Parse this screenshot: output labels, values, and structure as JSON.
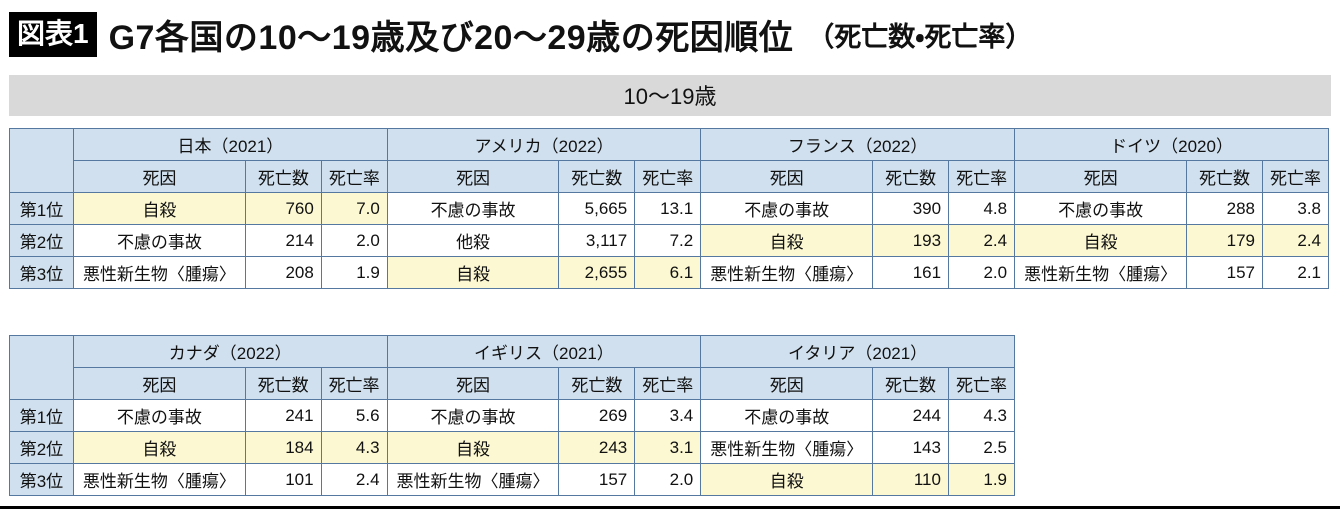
{
  "title": {
    "badge": "図表1",
    "main": "G7各国の10〜19歳及び20〜29歳の死因順位",
    "suffix": "（死亡数・死亡率）"
  },
  "colors": {
    "table_border": "#5578a0",
    "header_fill": "#d0e0ee",
    "highlight_fill": "#fcf8d2",
    "section_band_fill": "#d9d9d9",
    "badge_background": "#000000"
  },
  "chart_data": {
    "type": "table",
    "title": "G7各国の10〜19歳及び20〜29歳の死因順位（死亡数・死亡率）",
    "section": "10〜19歳",
    "columns": [
      "死因",
      "死亡数",
      "死亡率"
    ],
    "rank_labels": [
      "第1位",
      "第2位",
      "第3位"
    ],
    "groups": [
      [
        {
          "country": "日本（2021）",
          "rows": [
            {
              "cause": "自殺",
              "deaths": "760",
              "rate": "7.0",
              "highlight": true
            },
            {
              "cause": "不慮の事故",
              "deaths": "214",
              "rate": "2.0",
              "highlight": false
            },
            {
              "cause": "悪性新生物〈腫瘍〉",
              "deaths": "208",
              "rate": "1.9",
              "highlight": false
            }
          ]
        },
        {
          "country": "アメリカ（2022）",
          "rows": [
            {
              "cause": "不慮の事故",
              "deaths": "5,665",
              "rate": "13.1",
              "highlight": false
            },
            {
              "cause": "他殺",
              "deaths": "3,117",
              "rate": "7.2",
              "highlight": false
            },
            {
              "cause": "自殺",
              "deaths": "2,655",
              "rate": "6.1",
              "highlight": true
            }
          ]
        },
        {
          "country": "フランス（2022）",
          "rows": [
            {
              "cause": "不慮の事故",
              "deaths": "390",
              "rate": "4.8",
              "highlight": false
            },
            {
              "cause": "自殺",
              "deaths": "193",
              "rate": "2.4",
              "highlight": true
            },
            {
              "cause": "悪性新生物〈腫瘍〉",
              "deaths": "161",
              "rate": "2.0",
              "highlight": false
            }
          ]
        },
        {
          "country": "ドイツ（2020）",
          "rows": [
            {
              "cause": "不慮の事故",
              "deaths": "288",
              "rate": "3.8",
              "highlight": false
            },
            {
              "cause": "自殺",
              "deaths": "179",
              "rate": "2.4",
              "highlight": true
            },
            {
              "cause": "悪性新生物〈腫瘍〉",
              "deaths": "157",
              "rate": "2.1",
              "highlight": false
            }
          ]
        }
      ],
      [
        {
          "country": "カナダ（2022）",
          "rows": [
            {
              "cause": "不慮の事故",
              "deaths": "241",
              "rate": "5.6",
              "highlight": false
            },
            {
              "cause": "自殺",
              "deaths": "184",
              "rate": "4.3",
              "highlight": true
            },
            {
              "cause": "悪性新生物〈腫瘍〉",
              "deaths": "101",
              "rate": "2.4",
              "highlight": false
            }
          ]
        },
        {
          "country": "イギリス（2021）",
          "rows": [
            {
              "cause": "不慮の事故",
              "deaths": "269",
              "rate": "3.4",
              "highlight": false
            },
            {
              "cause": "自殺",
              "deaths": "243",
              "rate": "3.1",
              "highlight": true
            },
            {
              "cause": "悪性新生物〈腫瘍〉",
              "deaths": "157",
              "rate": "2.0",
              "highlight": false
            }
          ]
        },
        {
          "country": "イタリア（2021）",
          "rows": [
            {
              "cause": "不慮の事故",
              "deaths": "244",
              "rate": "4.3",
              "highlight": false
            },
            {
              "cause": "悪性新生物〈腫瘍〉",
              "deaths": "143",
              "rate": "2.5",
              "highlight": false
            },
            {
              "cause": "自殺",
              "deaths": "110",
              "rate": "1.9",
              "highlight": true
            }
          ]
        }
      ]
    ]
  }
}
